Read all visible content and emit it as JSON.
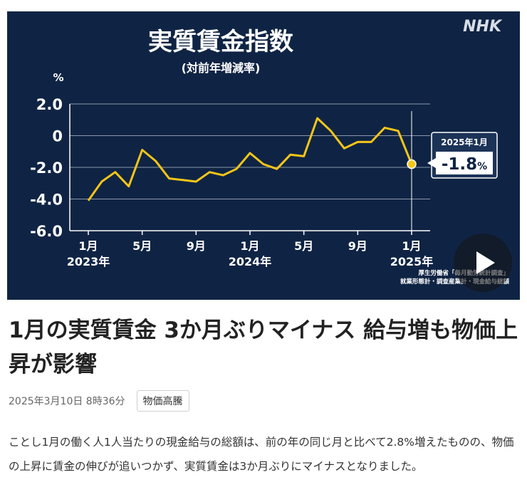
{
  "video": {
    "logo": "NHK",
    "chart_data": {
      "type": "line",
      "title": "実質賃金指数",
      "subtitle": "(対前年増減率)",
      "ylabel": "%",
      "ylim": [
        -6.0,
        2.0
      ],
      "yticks": [
        "2.0",
        "0",
        "-2.0",
        "-4.0",
        "-6.0"
      ],
      "ytick_values": [
        2.0,
        0,
        -2.0,
        -4.0,
        -6.0
      ],
      "xticks": [
        {
          "index": 0,
          "label": "1月",
          "year": "2023年"
        },
        {
          "index": 4,
          "label": "5月",
          "year": ""
        },
        {
          "index": 8,
          "label": "9月",
          "year": ""
        },
        {
          "index": 12,
          "label": "1月",
          "year": "2024年"
        },
        {
          "index": 16,
          "label": "5月",
          "year": ""
        },
        {
          "index": 20,
          "label": "9月",
          "year": ""
        },
        {
          "index": 24,
          "label": "1月",
          "year": "2025年"
        }
      ],
      "series": [
        {
          "values": [
            -4.1,
            -2.9,
            -2.3,
            -3.2,
            -0.9,
            -1.6,
            -2.7,
            -2.8,
            -2.9,
            -2.3,
            -2.5,
            -2.1,
            -1.1,
            -1.8,
            -2.1,
            -1.2,
            -1.3,
            1.1,
            0.3,
            -0.8,
            -0.4,
            -0.4,
            0.5,
            0.3,
            -1.8
          ],
          "color": "#f5c518"
        }
      ],
      "callout": {
        "label": "2025年1月",
        "value": "-1.8",
        "unit": "%"
      },
      "source": [
        "厚生労働省「毎月勤労統計調査」",
        "就業形態計・調査産業計・現金給与総額"
      ],
      "grid": true
    }
  },
  "article": {
    "title": "1月の実質賃金 3か月ぶりマイナス 給与増も物価上昇が影響",
    "date": "2025年3月10日 8時36分",
    "tag": "物価高騰",
    "body": "ことし1月の働く人1人当たりの現金給与の総額は、前の年の同じ月と比べて2.8%増えたものの、物価の上昇に賃金の伸びが追いつかず、実質賃金は3か月ぶりにマイナスとなりました。"
  }
}
